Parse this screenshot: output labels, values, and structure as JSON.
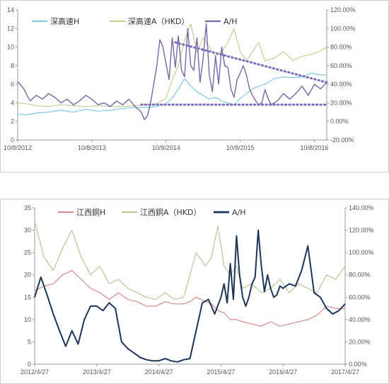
{
  "chart_data": [
    {
      "type": "line",
      "title": "",
      "legend_position": "top-left",
      "x_ticks": [
        "10/8/2012",
        "10/8/2013",
        "10/8/2014",
        "10/8/2015",
        "10/8/2016"
      ],
      "x_ticks_t": [
        0,
        0.24,
        0.48,
        0.72,
        0.96
      ],
      "y_left": {
        "min": 0,
        "max": 14,
        "ticks": [
          "0",
          "2",
          "4",
          "6",
          "8",
          "10",
          "12",
          "14"
        ]
      },
      "y_right": {
        "min": -20,
        "max": 120,
        "ticks": [
          "-20.00%",
          "0.00%",
          "20.00%",
          "40.00%",
          "60.00%",
          "80.00%",
          "100.00%",
          "120.00%"
        ]
      },
      "series": [
        {
          "name": "深高速H",
          "axis": "left",
          "color": "#7ecbe0",
          "width": 1.2,
          "t": [
            0,
            0.03,
            0.06,
            0.1,
            0.14,
            0.18,
            0.22,
            0.26,
            0.3,
            0.34,
            0.38,
            0.42,
            0.45,
            0.48,
            0.5,
            0.52,
            0.54,
            0.56,
            0.58,
            0.6,
            0.62,
            0.64,
            0.66,
            0.68,
            0.7,
            0.72,
            0.74,
            0.76,
            0.78,
            0.8,
            0.83,
            0.86,
            0.89,
            0.92,
            0.95,
            0.98,
            1
          ],
          "v": [
            2.8,
            2.7,
            2.9,
            3.0,
            3.2,
            3.0,
            3.3,
            3.1,
            3.2,
            3.4,
            3.5,
            3.5,
            3.6,
            3.9,
            4.5,
            5.5,
            6.6,
            5.8,
            5.2,
            4.8,
            4.4,
            4.6,
            4.2,
            4.0,
            3.8,
            4.5,
            5.0,
            5.5,
            5.8,
            6.0,
            6.6,
            6.8,
            6.7,
            6.8,
            7.2,
            7.0,
            7.0
          ]
        },
        {
          "name": "深高速A（HKD）",
          "axis": "left",
          "color": "#c5cf94",
          "width": 1.2,
          "t": [
            0,
            0.03,
            0.06,
            0.1,
            0.14,
            0.18,
            0.22,
            0.26,
            0.3,
            0.34,
            0.38,
            0.42,
            0.45,
            0.48,
            0.5,
            0.52,
            0.54,
            0.56,
            0.58,
            0.6,
            0.62,
            0.64,
            0.66,
            0.68,
            0.7,
            0.72,
            0.74,
            0.76,
            0.78,
            0.8,
            0.83,
            0.86,
            0.89,
            0.92,
            0.95,
            0.98,
            1
          ],
          "v": [
            4.0,
            3.9,
            3.7,
            3.6,
            3.8,
            3.7,
            3.6,
            3.7,
            3.6,
            3.6,
            3.7,
            3.8,
            3.9,
            4.5,
            6.5,
            8.0,
            10.8,
            12.5,
            9.5,
            11.0,
            10.0,
            9.0,
            9.5,
            10.5,
            12.0,
            9.5,
            8.5,
            9.5,
            10.5,
            8.5,
            8.8,
            9.5,
            8.6,
            9.0,
            9.2,
            9.6,
            10.0
          ]
        },
        {
          "name": "A/H",
          "axis": "right",
          "color": "#7866a6",
          "width": 1.4,
          "t": [
            0,
            0.02,
            0.04,
            0.06,
            0.08,
            0.1,
            0.12,
            0.14,
            0.16,
            0.18,
            0.2,
            0.22,
            0.24,
            0.26,
            0.28,
            0.3,
            0.32,
            0.34,
            0.36,
            0.38,
            0.4,
            0.41,
            0.42,
            0.43,
            0.44,
            0.45,
            0.46,
            0.47,
            0.48,
            0.49,
            0.5,
            0.51,
            0.52,
            0.53,
            0.54,
            0.55,
            0.56,
            0.57,
            0.58,
            0.59,
            0.6,
            0.61,
            0.62,
            0.63,
            0.64,
            0.65,
            0.66,
            0.67,
            0.68,
            0.69,
            0.7,
            0.71,
            0.72,
            0.73,
            0.74,
            0.75,
            0.76,
            0.77,
            0.78,
            0.79,
            0.8,
            0.81,
            0.82,
            0.84,
            0.86,
            0.88,
            0.9,
            0.92,
            0.94,
            0.96,
            0.98,
            1
          ],
          "v": [
            43,
            35,
            22,
            28,
            24,
            30,
            26,
            20,
            24,
            18,
            22,
            28,
            24,
            18,
            20,
            16,
            22,
            18,
            24,
            16,
            10,
            2,
            6,
            20,
            40,
            60,
            88,
            80,
            62,
            45,
            90,
            58,
            92,
            55,
            48,
            100,
            60,
            55,
            90,
            42,
            68,
            105,
            50,
            32,
            70,
            40,
            80,
            60,
            58,
            35,
            26,
            45,
            52,
            60,
            50,
            35,
            28,
            22,
            18,
            20,
            34,
            25,
            18,
            22,
            30,
            24,
            30,
            38,
            28,
            40,
            35,
            42
          ]
        }
      ],
      "annotations": [
        {
          "type": "dotted-trend",
          "axis": "right",
          "from": [
            0.51,
            85
          ],
          "to": [
            1,
            42
          ],
          "color": "#7b6cc0"
        },
        {
          "type": "dotted-trend",
          "axis": "right",
          "from": [
            0.4,
            18
          ],
          "to": [
            1,
            18
          ],
          "color": "#7b6cc0"
        }
      ]
    },
    {
      "type": "line",
      "title": "",
      "legend_position": "top-center",
      "x_ticks": [
        "2012/4/27",
        "2013/4/27",
        "2014/4/27",
        "2015/4/27",
        "2016/4/27",
        "2017/4/27"
      ],
      "x_ticks_t": [
        0,
        0.2,
        0.4,
        0.6,
        0.8,
        1
      ],
      "y_left": {
        "min": 0,
        "max": 35,
        "ticks": [
          "0",
          "5",
          "10",
          "15",
          "20",
          "25",
          "30",
          "35"
        ]
      },
      "y_right": {
        "min": 0,
        "max": 140,
        "ticks": [
          "0.00%",
          "20.00%",
          "40.00%",
          "60.00%",
          "80.00%",
          "100.00%",
          "120.00%",
          "140.00%"
        ]
      },
      "series": [
        {
          "name": "江西銅H",
          "axis": "left",
          "color": "#d98a8a",
          "width": 1.2,
          "t": [
            0,
            0.03,
            0.06,
            0.09,
            0.12,
            0.15,
            0.18,
            0.21,
            0.24,
            0.27,
            0.3,
            0.33,
            0.36,
            0.39,
            0.42,
            0.45,
            0.48,
            0.5,
            0.52,
            0.55,
            0.57,
            0.59,
            0.61,
            0.63,
            0.65,
            0.67,
            0.7,
            0.73,
            0.76,
            0.79,
            0.82,
            0.85,
            0.88,
            0.91,
            0.94,
            0.97,
            1
          ],
          "v": [
            16.5,
            17.5,
            18,
            20,
            21,
            19,
            17,
            16,
            14.5,
            16,
            14.5,
            14,
            13,
            13,
            14,
            13.5,
            13.5,
            14,
            15,
            14,
            13.5,
            12,
            11.5,
            10,
            10,
            9.5,
            9,
            8.5,
            9.5,
            8.5,
            9,
            9.5,
            10,
            11,
            13,
            12.5,
            12.5
          ]
        },
        {
          "name": "江西銅A（HKD）",
          "axis": "left",
          "color": "#bcc49a",
          "width": 1.2,
          "t": [
            0,
            0.03,
            0.06,
            0.09,
            0.12,
            0.15,
            0.18,
            0.21,
            0.24,
            0.27,
            0.3,
            0.33,
            0.36,
            0.39,
            0.42,
            0.45,
            0.48,
            0.5,
            0.52,
            0.55,
            0.57,
            0.59,
            0.61,
            0.63,
            0.65,
            0.67,
            0.7,
            0.73,
            0.76,
            0.79,
            0.82,
            0.85,
            0.88,
            0.91,
            0.94,
            0.97,
            1
          ],
          "v": [
            32,
            24,
            21,
            26,
            30,
            24,
            20,
            22,
            18,
            19,
            17,
            16,
            15,
            14.5,
            16,
            14.5,
            15,
            20,
            25,
            22,
            24,
            31,
            22,
            20,
            22,
            17,
            18,
            16,
            17,
            19,
            16,
            18,
            17,
            16,
            20,
            19,
            22
          ]
        },
        {
          "name": "A/H",
          "axis": "right",
          "color": "#1c3558",
          "width": 2.0,
          "t": [
            0,
            0.02,
            0.04,
            0.06,
            0.08,
            0.1,
            0.12,
            0.14,
            0.16,
            0.18,
            0.2,
            0.22,
            0.24,
            0.26,
            0.28,
            0.3,
            0.32,
            0.34,
            0.36,
            0.38,
            0.4,
            0.42,
            0.44,
            0.46,
            0.48,
            0.5,
            0.52,
            0.54,
            0.56,
            0.58,
            0.6,
            0.61,
            0.62,
            0.63,
            0.64,
            0.65,
            0.66,
            0.67,
            0.68,
            0.69,
            0.7,
            0.71,
            0.72,
            0.73,
            0.74,
            0.75,
            0.76,
            0.77,
            0.78,
            0.79,
            0.8,
            0.82,
            0.84,
            0.86,
            0.88,
            0.9,
            0.92,
            0.94,
            0.96,
            0.98,
            1
          ],
          "v": [
            60,
            78,
            62,
            45,
            30,
            16,
            30,
            18,
            40,
            52,
            52,
            48,
            55,
            50,
            20,
            14,
            10,
            6,
            4,
            3,
            3,
            5,
            3,
            2,
            4,
            5,
            30,
            55,
            58,
            45,
            60,
            72,
            55,
            90,
            58,
            115,
            80,
            60,
            52,
            60,
            72,
            78,
            120,
            88,
            65,
            80,
            68,
            60,
            62,
            70,
            68,
            72,
            70,
            84,
            106,
            64,
            60,
            50,
            45,
            48,
            54
          ]
        }
      ],
      "annotations": []
    }
  ]
}
